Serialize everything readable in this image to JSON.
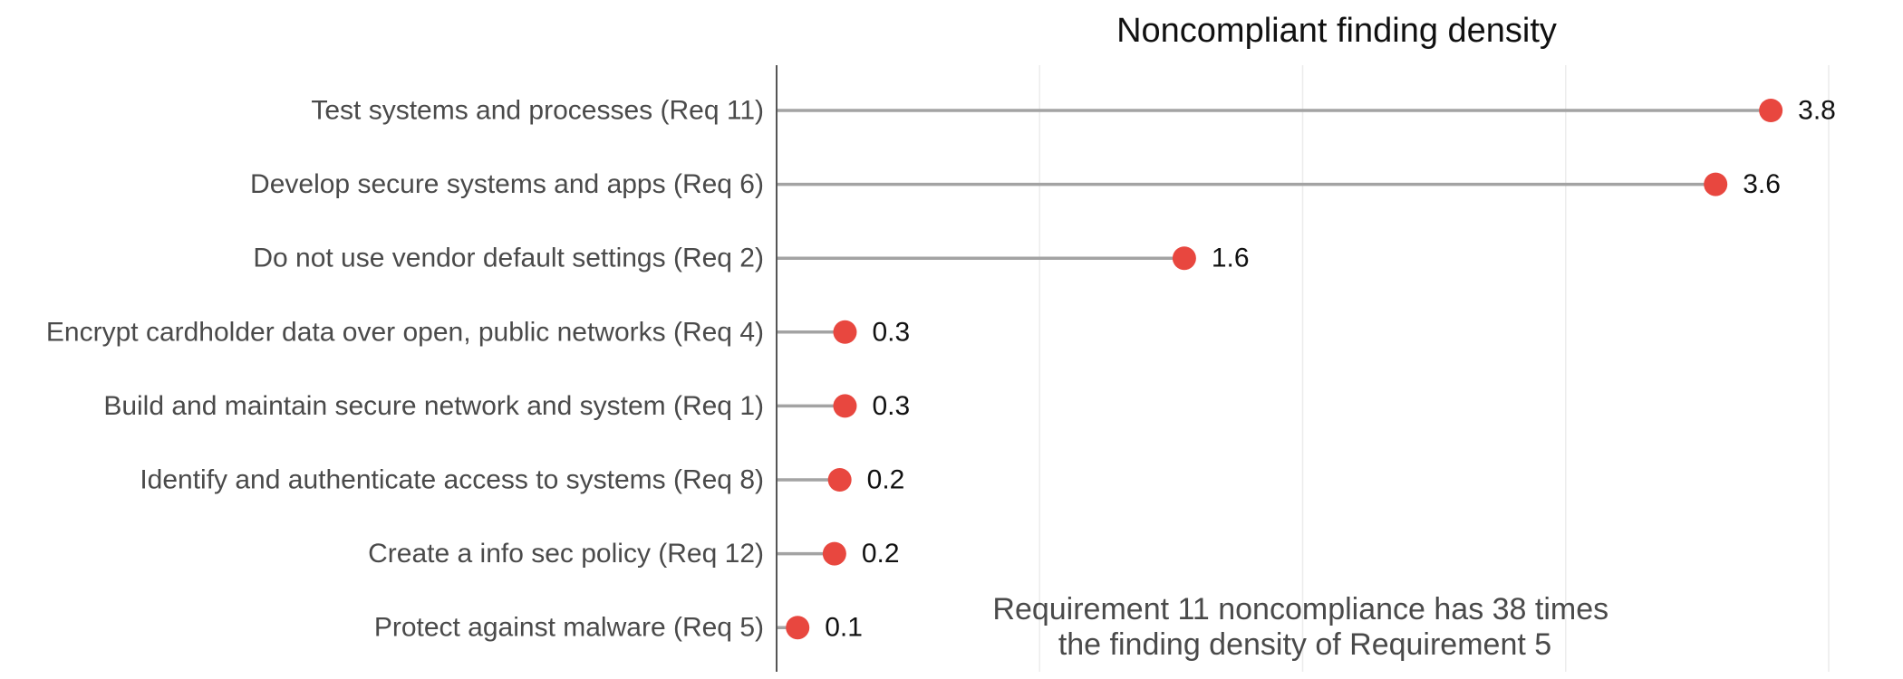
{
  "chart_data": {
    "type": "lollipop",
    "title": "Noncompliant finding density",
    "xlabel": "",
    "ylabel": "",
    "xlim": [
      0,
      4
    ],
    "grid": true,
    "categories": [
      "Test systems and processes (Req 11)",
      "Develop secure systems and apps (Req 6)",
      "Do not use vendor default settings (Req 2)",
      "Encrypt cardholder data over open, public networks (Req 4)",
      "Build and maintain secure network and system (Req 1)",
      "Identify and authenticate access to systems (Req 8)",
      "Create a info sec policy (Req 12)",
      "Protect against malware (Req 5)"
    ],
    "values": [
      3.78,
      3.57,
      1.55,
      0.26,
      0.26,
      0.24,
      0.22,
      0.08
    ],
    "value_labels": [
      "3.8",
      "3.6",
      "1.6",
      "0.3",
      "0.3",
      "0.2",
      "0.2",
      "0.1"
    ],
    "annotation": [
      "Requirement 11 noncompliance has 38 times",
      "the finding density of Requirement 5"
    ],
    "colors": {
      "point": "#e8473f",
      "stem": "#a3a3a3",
      "grid": "#ececec",
      "axis": "#555555"
    }
  }
}
